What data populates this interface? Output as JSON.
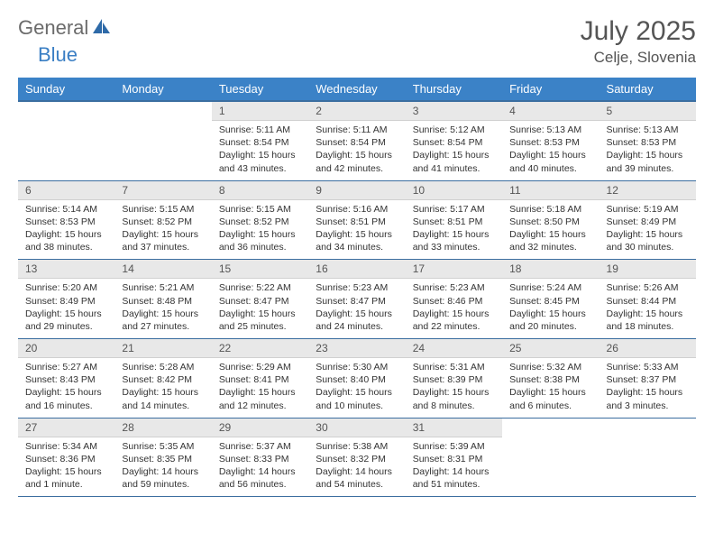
{
  "brand": {
    "general": "General",
    "blue": "Blue"
  },
  "title": "July 2025",
  "location": "Celje, Slovenia",
  "colors": {
    "header_bg": "#3b82c7",
    "header_text": "#ffffff",
    "daynum_bg": "#e8e8e8",
    "rule": "#3b6ea0",
    "logo_gray": "#6b6b6b",
    "logo_blue": "#3b7fc4"
  },
  "weekdays": [
    "Sunday",
    "Monday",
    "Tuesday",
    "Wednesday",
    "Thursday",
    "Friday",
    "Saturday"
  ],
  "weeks": [
    [
      {
        "n": "",
        "sr": "",
        "ss": "",
        "dl": ""
      },
      {
        "n": "",
        "sr": "",
        "ss": "",
        "dl": ""
      },
      {
        "n": "1",
        "sr": "Sunrise: 5:11 AM",
        "ss": "Sunset: 8:54 PM",
        "dl": "Daylight: 15 hours and 43 minutes."
      },
      {
        "n": "2",
        "sr": "Sunrise: 5:11 AM",
        "ss": "Sunset: 8:54 PM",
        "dl": "Daylight: 15 hours and 42 minutes."
      },
      {
        "n": "3",
        "sr": "Sunrise: 5:12 AM",
        "ss": "Sunset: 8:54 PM",
        "dl": "Daylight: 15 hours and 41 minutes."
      },
      {
        "n": "4",
        "sr": "Sunrise: 5:13 AM",
        "ss": "Sunset: 8:53 PM",
        "dl": "Daylight: 15 hours and 40 minutes."
      },
      {
        "n": "5",
        "sr": "Sunrise: 5:13 AM",
        "ss": "Sunset: 8:53 PM",
        "dl": "Daylight: 15 hours and 39 minutes."
      }
    ],
    [
      {
        "n": "6",
        "sr": "Sunrise: 5:14 AM",
        "ss": "Sunset: 8:53 PM",
        "dl": "Daylight: 15 hours and 38 minutes."
      },
      {
        "n": "7",
        "sr": "Sunrise: 5:15 AM",
        "ss": "Sunset: 8:52 PM",
        "dl": "Daylight: 15 hours and 37 minutes."
      },
      {
        "n": "8",
        "sr": "Sunrise: 5:15 AM",
        "ss": "Sunset: 8:52 PM",
        "dl": "Daylight: 15 hours and 36 minutes."
      },
      {
        "n": "9",
        "sr": "Sunrise: 5:16 AM",
        "ss": "Sunset: 8:51 PM",
        "dl": "Daylight: 15 hours and 34 minutes."
      },
      {
        "n": "10",
        "sr": "Sunrise: 5:17 AM",
        "ss": "Sunset: 8:51 PM",
        "dl": "Daylight: 15 hours and 33 minutes."
      },
      {
        "n": "11",
        "sr": "Sunrise: 5:18 AM",
        "ss": "Sunset: 8:50 PM",
        "dl": "Daylight: 15 hours and 32 minutes."
      },
      {
        "n": "12",
        "sr": "Sunrise: 5:19 AM",
        "ss": "Sunset: 8:49 PM",
        "dl": "Daylight: 15 hours and 30 minutes."
      }
    ],
    [
      {
        "n": "13",
        "sr": "Sunrise: 5:20 AM",
        "ss": "Sunset: 8:49 PM",
        "dl": "Daylight: 15 hours and 29 minutes."
      },
      {
        "n": "14",
        "sr": "Sunrise: 5:21 AM",
        "ss": "Sunset: 8:48 PM",
        "dl": "Daylight: 15 hours and 27 minutes."
      },
      {
        "n": "15",
        "sr": "Sunrise: 5:22 AM",
        "ss": "Sunset: 8:47 PM",
        "dl": "Daylight: 15 hours and 25 minutes."
      },
      {
        "n": "16",
        "sr": "Sunrise: 5:23 AM",
        "ss": "Sunset: 8:47 PM",
        "dl": "Daylight: 15 hours and 24 minutes."
      },
      {
        "n": "17",
        "sr": "Sunrise: 5:23 AM",
        "ss": "Sunset: 8:46 PM",
        "dl": "Daylight: 15 hours and 22 minutes."
      },
      {
        "n": "18",
        "sr": "Sunrise: 5:24 AM",
        "ss": "Sunset: 8:45 PM",
        "dl": "Daylight: 15 hours and 20 minutes."
      },
      {
        "n": "19",
        "sr": "Sunrise: 5:26 AM",
        "ss": "Sunset: 8:44 PM",
        "dl": "Daylight: 15 hours and 18 minutes."
      }
    ],
    [
      {
        "n": "20",
        "sr": "Sunrise: 5:27 AM",
        "ss": "Sunset: 8:43 PM",
        "dl": "Daylight: 15 hours and 16 minutes."
      },
      {
        "n": "21",
        "sr": "Sunrise: 5:28 AM",
        "ss": "Sunset: 8:42 PM",
        "dl": "Daylight: 15 hours and 14 minutes."
      },
      {
        "n": "22",
        "sr": "Sunrise: 5:29 AM",
        "ss": "Sunset: 8:41 PM",
        "dl": "Daylight: 15 hours and 12 minutes."
      },
      {
        "n": "23",
        "sr": "Sunrise: 5:30 AM",
        "ss": "Sunset: 8:40 PM",
        "dl": "Daylight: 15 hours and 10 minutes."
      },
      {
        "n": "24",
        "sr": "Sunrise: 5:31 AM",
        "ss": "Sunset: 8:39 PM",
        "dl": "Daylight: 15 hours and 8 minutes."
      },
      {
        "n": "25",
        "sr": "Sunrise: 5:32 AM",
        "ss": "Sunset: 8:38 PM",
        "dl": "Daylight: 15 hours and 6 minutes."
      },
      {
        "n": "26",
        "sr": "Sunrise: 5:33 AM",
        "ss": "Sunset: 8:37 PM",
        "dl": "Daylight: 15 hours and 3 minutes."
      }
    ],
    [
      {
        "n": "27",
        "sr": "Sunrise: 5:34 AM",
        "ss": "Sunset: 8:36 PM",
        "dl": "Daylight: 15 hours and 1 minute."
      },
      {
        "n": "28",
        "sr": "Sunrise: 5:35 AM",
        "ss": "Sunset: 8:35 PM",
        "dl": "Daylight: 14 hours and 59 minutes."
      },
      {
        "n": "29",
        "sr": "Sunrise: 5:37 AM",
        "ss": "Sunset: 8:33 PM",
        "dl": "Daylight: 14 hours and 56 minutes."
      },
      {
        "n": "30",
        "sr": "Sunrise: 5:38 AM",
        "ss": "Sunset: 8:32 PM",
        "dl": "Daylight: 14 hours and 54 minutes."
      },
      {
        "n": "31",
        "sr": "Sunrise: 5:39 AM",
        "ss": "Sunset: 8:31 PM",
        "dl": "Daylight: 14 hours and 51 minutes."
      },
      {
        "n": "",
        "sr": "",
        "ss": "",
        "dl": ""
      },
      {
        "n": "",
        "sr": "",
        "ss": "",
        "dl": ""
      }
    ]
  ]
}
